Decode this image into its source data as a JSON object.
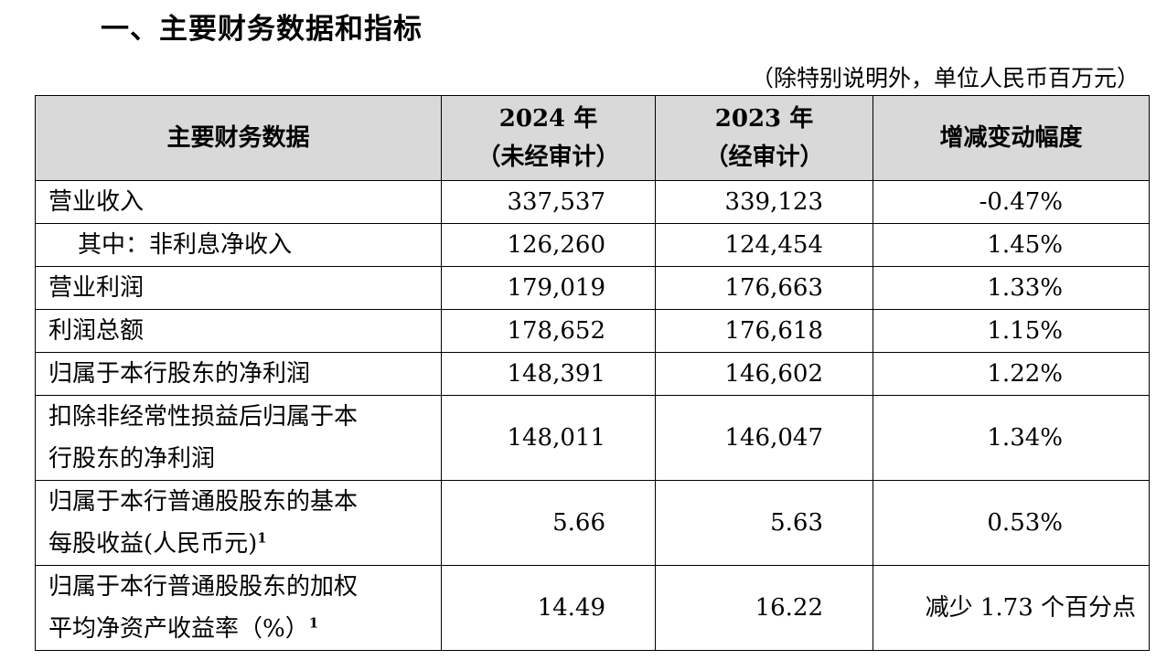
{
  "heading": "一、主要财务数据和指标",
  "unit_note": "（除特别说明外，单位人民币百万元）",
  "table": {
    "headers": {
      "item": "主要财务数据",
      "y2024_line1": "2024 年",
      "y2024_line2": "（未经审计）",
      "y2023_line1": "2023 年",
      "y2023_line2": "（经审计）",
      "change": "增减变动幅度"
    },
    "rows": [
      {
        "label": "营业收入",
        "v2024": "337,537",
        "v2023": "339,123",
        "change": "-0.47%"
      },
      {
        "label": "其中：非利息净收入",
        "v2024": "126,260",
        "v2023": "124,454",
        "change": "1.45%"
      },
      {
        "label": "营业利润",
        "v2024": "179,019",
        "v2023": "176,663",
        "change": "1.33%"
      },
      {
        "label": "利润总额",
        "v2024": "178,652",
        "v2023": "176,618",
        "change": "1.15%"
      },
      {
        "label": "归属于本行股东的净利润",
        "v2024": "148,391",
        "v2023": "146,602",
        "change": "1.22%"
      },
      {
        "label_l1": "扣除非经常性损益后归属于本",
        "label_l2": "行股东的净利润",
        "v2024": "148,011",
        "v2023": "146,047",
        "change": "1.34%"
      },
      {
        "label_l1": "归属于本行普通股股东的基本",
        "label_l2": "每股收益(人民币元)",
        "footnote": "1",
        "v2024": "5.66",
        "v2023": "5.63",
        "change": "0.53%"
      },
      {
        "label_l1": "归属于本行普通股股东的加权",
        "label_l2": "平均净资产收益率（%）",
        "footnote": "1",
        "v2024": "14.49",
        "v2023": "16.22",
        "change": "减少 1.73 个百分点"
      }
    ]
  }
}
